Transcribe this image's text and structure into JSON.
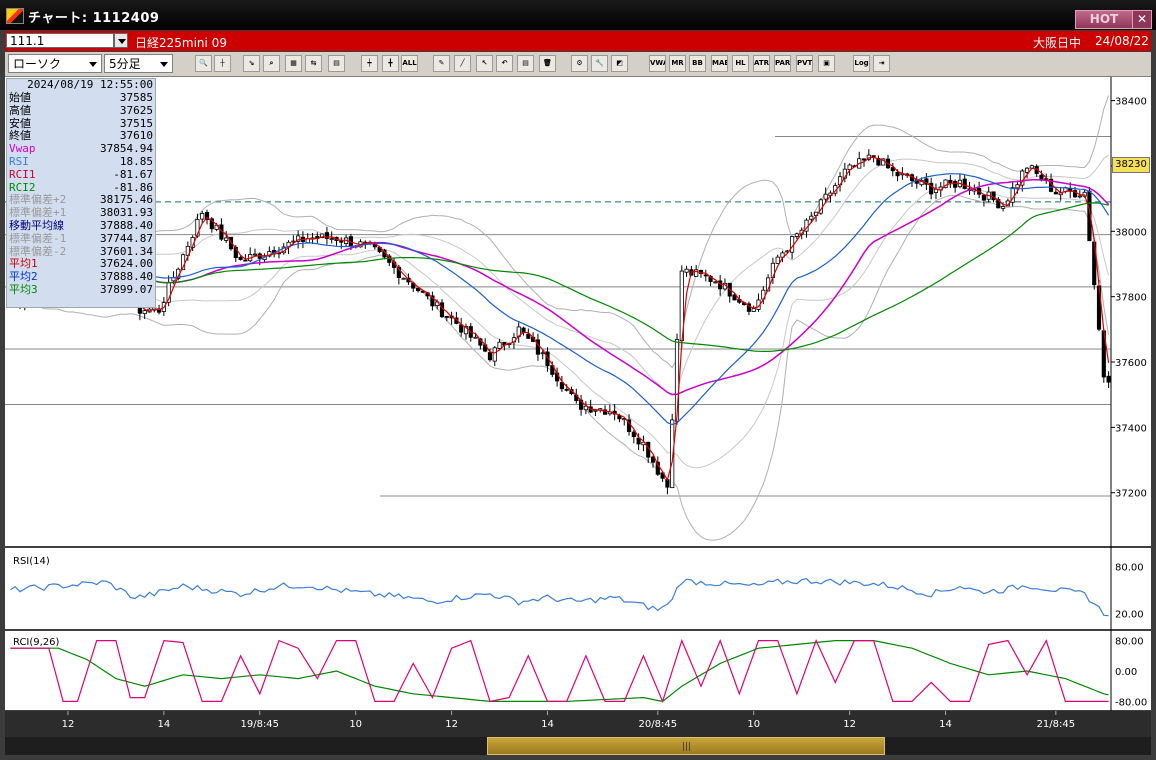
{
  "window": {
    "title": "チャート: 1112409",
    "hot_label": "HOT",
    "close_label": "✕"
  },
  "infobar": {
    "code": "111.1",
    "product": "日経225mini 09",
    "session": "大阪日中",
    "date": "24/08/22"
  },
  "toolbar": {
    "chart_type": "ローソク",
    "interval": "5分足",
    "buttons": [
      {
        "name": "zoom-icon",
        "label": "🔍"
      },
      {
        "name": "cursor-line-icon",
        "label": "┼"
      },
      {
        "name": "trend-icon",
        "label": "⇘"
      },
      {
        "name": "search-chart-icon",
        "label": "⌕"
      },
      {
        "name": "grid-icon",
        "label": "▦"
      },
      {
        "name": "compare-icon",
        "label": "⇆"
      },
      {
        "name": "disabled-icon",
        "label": "▤"
      },
      {
        "name": "candle-up-icon",
        "label": "┿"
      },
      {
        "name": "candle-down-icon",
        "label": "╋"
      },
      {
        "name": "all-icon",
        "label": "ALL"
      },
      {
        "name": "pen-icon",
        "label": "✎"
      },
      {
        "name": "line-tool-icon",
        "label": "╱"
      },
      {
        "name": "pointer-icon",
        "label": "↖"
      },
      {
        "name": "undo-icon",
        "label": "↶"
      },
      {
        "name": "document-icon",
        "label": "▤"
      },
      {
        "name": "trash-icon",
        "label": "🗑"
      },
      {
        "name": "settings-icon",
        "label": "⚙"
      },
      {
        "name": "wrench-icon",
        "label": "🔧"
      },
      {
        "name": "color-icon",
        "label": "◩"
      },
      {
        "name": "vwap-icon",
        "label": "VWAP"
      },
      {
        "name": "mr-icon",
        "label": "MR"
      },
      {
        "name": "bb-icon",
        "label": "BB"
      },
      {
        "name": "mae-icon",
        "label": "MAE"
      },
      {
        "name": "hl-icon",
        "label": "HL"
      },
      {
        "name": "atr-icon",
        "label": "ATR"
      },
      {
        "name": "para-icon",
        "label": "PARA"
      },
      {
        "name": "pvt-icon",
        "label": "PVT"
      },
      {
        "name": "box-icon",
        "label": "▣"
      },
      {
        "name": "log-icon",
        "label": "Log"
      },
      {
        "name": "export-icon",
        "label": "⇥"
      }
    ]
  },
  "data_panel": {
    "datetime": "2024/08/19 12:55:00",
    "rows": [
      {
        "label": "始値",
        "value": "37585",
        "color": "#000000"
      },
      {
        "label": "高値",
        "value": "37625",
        "color": "#000000"
      },
      {
        "label": "安値",
        "value": "37515",
        "color": "#000000"
      },
      {
        "label": "終値",
        "value": "37610",
        "color": "#000000"
      },
      {
        "label": "Vwap",
        "value": "37854.94",
        "color": "#cc00cc"
      },
      {
        "label": "RSI",
        "value": "18.85",
        "color": "#3a7fd9"
      },
      {
        "label": "RCI1",
        "value": "-81.67",
        "color": "#cc0033"
      },
      {
        "label": "RCI2",
        "value": "-81.86",
        "color": "#008800"
      },
      {
        "label": "標準偏差+2",
        "value": "38175.46",
        "color": "#9a9a9a"
      },
      {
        "label": "標準偏差+1",
        "value": "38031.93",
        "color": "#9a9a9a"
      },
      {
        "label": "移動平均線",
        "value": "37888.40",
        "color": "#000080"
      },
      {
        "label": "標準偏差-1",
        "value": "37744.87",
        "color": "#9a9a9a"
      },
      {
        "label": "標準偏差-2",
        "value": "37601.34",
        "color": "#9a9a9a"
      },
      {
        "label": "平均1",
        "value": "37624.00",
        "color": "#cc0000"
      },
      {
        "label": "平均2",
        "value": "37888.40",
        "color": "#0033cc"
      },
      {
        "label": "平均3",
        "value": "37899.07",
        "color": "#008800"
      }
    ]
  },
  "current_price": "38230",
  "rsi_label": "RSI(14)",
  "rci_label": "RCI(9,26)",
  "chart_data": {
    "type": "line",
    "price_axis": {
      "ticks": [
        38400,
        38200,
        38000,
        37800,
        37600,
        37400,
        37200
      ],
      "range": [
        37040,
        38460
      ]
    },
    "rsi_axis": {
      "ticks": [
        "80.00",
        "20.00"
      ],
      "range": [
        0,
        100
      ]
    },
    "rci_axis": {
      "ticks": [
        "80.00",
        "0.00",
        "-80.00"
      ],
      "range": [
        -100,
        100
      ]
    },
    "x_labels": [
      "12",
      "14",
      "19/8:45",
      "10",
      "12",
      "14",
      "20/8:45",
      "10",
      "12",
      "14",
      "21/8:45"
    ],
    "x_label_pos": [
      12,
      32,
      52,
      72,
      92,
      112,
      135,
      155,
      175,
      195,
      218
    ],
    "n_bars": 230,
    "series": {
      "close_anchors": [
        [
          0,
          37780
        ],
        [
          8,
          37830
        ],
        [
          20,
          37980
        ],
        [
          26,
          37760
        ],
        [
          31,
          37760
        ],
        [
          40,
          38060
        ],
        [
          48,
          37910
        ],
        [
          56,
          37950
        ],
        [
          62,
          37980
        ],
        [
          68,
          37980
        ],
        [
          75,
          37950
        ],
        [
          83,
          37850
        ],
        [
          88,
          37780
        ],
        [
          93,
          37720
        ],
        [
          100,
          37620
        ],
        [
          106,
          37700
        ],
        [
          112,
          37600
        ],
        [
          118,
          37470
        ],
        [
          126,
          37450
        ],
        [
          132,
          37350
        ],
        [
          135,
          37270
        ],
        [
          137,
          37220
        ],
        [
          140,
          37880
        ],
        [
          147,
          37850
        ],
        [
          155,
          37760
        ],
        [
          160,
          37920
        ],
        [
          166,
          38020
        ],
        [
          174,
          38180
        ],
        [
          180,
          38230
        ],
        [
          184,
          38180
        ],
        [
          192,
          38130
        ],
        [
          198,
          38150
        ],
        [
          202,
          38120
        ],
        [
          207,
          38080
        ],
        [
          212,
          38200
        ],
        [
          218,
          38120
        ],
        [
          224,
          38120
        ],
        [
          228,
          37560
        ],
        [
          232,
          37540
        ],
        [
          236,
          37680
        ],
        [
          240,
          37760
        ]
      ],
      "rsi_anchors": [
        [
          0,
          50
        ],
        [
          10,
          55
        ],
        [
          20,
          60
        ],
        [
          26,
          40
        ],
        [
          30,
          45
        ],
        [
          36,
          55
        ],
        [
          48,
          45
        ],
        [
          56,
          55
        ],
        [
          62,
          56
        ],
        [
          68,
          50
        ],
        [
          75,
          45
        ],
        [
          83,
          40
        ],
        [
          88,
          35
        ],
        [
          93,
          40
        ],
        [
          100,
          45
        ],
        [
          106,
          35
        ],
        [
          112,
          40
        ],
        [
          118,
          35
        ],
        [
          126,
          40
        ],
        [
          132,
          30
        ],
        [
          135,
          25
        ],
        [
          137,
          30
        ],
        [
          140,
          62
        ],
        [
          148,
          58
        ],
        [
          155,
          55
        ],
        [
          160,
          60
        ],
        [
          166,
          62
        ],
        [
          174,
          60
        ],
        [
          180,
          58
        ],
        [
          184,
          55
        ],
        [
          192,
          45
        ],
        [
          198,
          55
        ],
        [
          202,
          48
        ],
        [
          207,
          50
        ],
        [
          212,
          56
        ],
        [
          218,
          50
        ],
        [
          224,
          45
        ],
        [
          228,
          20
        ],
        [
          232,
          22
        ],
        [
          236,
          30
        ],
        [
          240,
          35
        ]
      ],
      "rci1_anchors": [
        [
          0,
          60
        ],
        [
          8,
          60
        ],
        [
          11,
          -80
        ],
        [
          14,
          -80
        ],
        [
          18,
          80
        ],
        [
          22,
          80
        ],
        [
          25,
          -70
        ],
        [
          28,
          -70
        ],
        [
          32,
          80
        ],
        [
          36,
          75
        ],
        [
          40,
          -80
        ],
        [
          44,
          -80
        ],
        [
          48,
          40
        ],
        [
          52,
          -60
        ],
        [
          56,
          80
        ],
        [
          60,
          60
        ],
        [
          64,
          -20
        ],
        [
          68,
          80
        ],
        [
          72,
          80
        ],
        [
          76,
          -80
        ],
        [
          80,
          -80
        ],
        [
          84,
          20
        ],
        [
          88,
          -70
        ],
        [
          92,
          60
        ],
        [
          96,
          80
        ],
        [
          100,
          -80
        ],
        [
          104,
          -70
        ],
        [
          108,
          40
        ],
        [
          112,
          -80
        ],
        [
          116,
          -80
        ],
        [
          120,
          40
        ],
        [
          124,
          -80
        ],
        [
          128,
          -80
        ],
        [
          132,
          40
        ],
        [
          136,
          -80
        ],
        [
          140,
          80
        ],
        [
          144,
          -40
        ],
        [
          148,
          80
        ],
        [
          152,
          -60
        ],
        [
          156,
          80
        ],
        [
          160,
          80
        ],
        [
          164,
          -60
        ],
        [
          168,
          80
        ],
        [
          172,
          -30
        ],
        [
          176,
          80
        ],
        [
          180,
          80
        ],
        [
          184,
          -80
        ],
        [
          188,
          -80
        ],
        [
          192,
          -30
        ],
        [
          196,
          -80
        ],
        [
          200,
          -80
        ],
        [
          204,
          70
        ],
        [
          208,
          80
        ],
        [
          212,
          -10
        ],
        [
          216,
          80
        ],
        [
          220,
          -80
        ],
        [
          224,
          -80
        ],
        [
          228,
          -80
        ],
        [
          232,
          -80
        ],
        [
          236,
          60
        ],
        [
          240,
          0
        ]
      ],
      "rci2_anchors": [
        [
          0,
          60
        ],
        [
          10,
          60
        ],
        [
          16,
          30
        ],
        [
          22,
          -20
        ],
        [
          28,
          -40
        ],
        [
          36,
          -10
        ],
        [
          44,
          -20
        ],
        [
          52,
          -10
        ],
        [
          60,
          -20
        ],
        [
          68,
          0
        ],
        [
          76,
          -40
        ],
        [
          84,
          -60
        ],
        [
          92,
          -70
        ],
        [
          100,
          -80
        ],
        [
          108,
          -80
        ],
        [
          116,
          -80
        ],
        [
          124,
          -75
        ],
        [
          132,
          -70
        ],
        [
          136,
          -80
        ],
        [
          140,
          -40
        ],
        [
          148,
          20
        ],
        [
          156,
          60
        ],
        [
          164,
          70
        ],
        [
          172,
          80
        ],
        [
          180,
          80
        ],
        [
          188,
          60
        ],
        [
          196,
          20
        ],
        [
          204,
          -10
        ],
        [
          212,
          0
        ],
        [
          220,
          -20
        ],
        [
          228,
          -60
        ],
        [
          236,
          -80
        ],
        [
          240,
          -80
        ]
      ]
    }
  }
}
